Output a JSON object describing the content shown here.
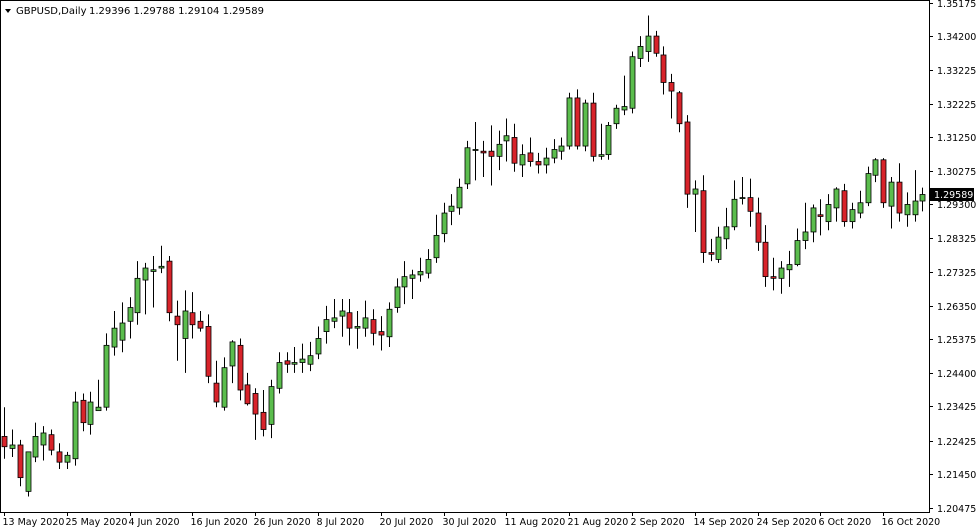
{
  "header": {
    "symbol": "GBPUSD,Daily",
    "ohlc": "1.29396 1.29788 1.29104 1.29589"
  },
  "current_price_label": "1.29589",
  "colors": {
    "bull": "#5bbd4d",
    "bear": "#d8232a",
    "wick": "#000000",
    "axis": "#000000",
    "price_tag_bg": "#000000",
    "price_tag_text": "#ffffff",
    "background": "#ffffff"
  },
  "chart_data": {
    "type": "candlestick",
    "title": "GBPUSD,Daily",
    "y_axis": {
      "position": "right",
      "ticks": [
        "1.35175",
        "1.34200",
        "1.33225",
        "1.32225",
        "1.31250",
        "1.30275",
        "1.29300",
        "1.28325",
        "1.27325",
        "1.26350",
        "1.25375",
        "1.24400",
        "1.23425",
        "1.22425",
        "1.21450",
        "1.20475"
      ],
      "ylim": [
        1.2035,
        1.3525
      ]
    },
    "x_axis": {
      "tick_labels": [
        "13 May 2020",
        "25 May 2020",
        "4 Jun 2020",
        "16 Jun 2020",
        "26 Jun 2020",
        "8 Jul 2020",
        "20 Jul 2020",
        "30 Jul 2020",
        "11 Aug 2020",
        "21 Aug 2020",
        "2 Sep 2020",
        "14 Sep 2020",
        "24 Sep 2020",
        "6 Oct 2020",
        "16 Oct 2020"
      ],
      "tick_indices": [
        0,
        8,
        16,
        24,
        32,
        40,
        48,
        56,
        64,
        72,
        80,
        88,
        96,
        104,
        112
      ]
    },
    "candles": [
      {
        "o": 1.2255,
        "h": 1.234,
        "l": 1.219,
        "c": 1.2225
      },
      {
        "o": 1.222,
        "h": 1.2275,
        "l": 1.2195,
        "c": 1.223
      },
      {
        "o": 1.223,
        "h": 1.2245,
        "l": 1.211,
        "c": 1.2135
      },
      {
        "o": 1.2095,
        "h": 1.2205,
        "l": 1.208,
        "c": 1.221
      },
      {
        "o": 1.2195,
        "h": 1.2295,
        "l": 1.218,
        "c": 1.2255
      },
      {
        "o": 1.223,
        "h": 1.2285,
        "l": 1.2185,
        "c": 1.2265
      },
      {
        "o": 1.226,
        "h": 1.2275,
        "l": 1.22,
        "c": 1.2215
      },
      {
        "o": 1.221,
        "h": 1.2235,
        "l": 1.216,
        "c": 1.218
      },
      {
        "o": 1.218,
        "h": 1.221,
        "l": 1.216,
        "c": 1.22
      },
      {
        "o": 1.219,
        "h": 1.2385,
        "l": 1.217,
        "c": 1.2355
      },
      {
        "o": 1.236,
        "h": 1.238,
        "l": 1.227,
        "c": 1.2295
      },
      {
        "o": 1.229,
        "h": 1.2385,
        "l": 1.226,
        "c": 1.2355
      },
      {
        "o": 1.233,
        "h": 1.242,
        "l": 1.233,
        "c": 1.234
      },
      {
        "o": 1.234,
        "h": 1.2555,
        "l": 1.233,
        "c": 1.252
      },
      {
        "o": 1.2515,
        "h": 1.262,
        "l": 1.249,
        "c": 1.257
      },
      {
        "o": 1.2535,
        "h": 1.2645,
        "l": 1.25,
        "c": 1.2585
      },
      {
        "o": 1.259,
        "h": 1.266,
        "l": 1.254,
        "c": 1.263
      },
      {
        "o": 1.2615,
        "h": 1.2765,
        "l": 1.258,
        "c": 1.2715
      },
      {
        "o": 1.271,
        "h": 1.276,
        "l": 1.261,
        "c": 1.2745
      },
      {
        "o": 1.2735,
        "h": 1.278,
        "l": 1.263,
        "c": 1.274
      },
      {
        "o": 1.2745,
        "h": 1.281,
        "l": 1.273,
        "c": 1.275
      },
      {
        "o": 1.2765,
        "h": 1.278,
        "l": 1.259,
        "c": 1.2615
      },
      {
        "o": 1.2605,
        "h": 1.265,
        "l": 1.2475,
        "c": 1.258
      },
      {
        "o": 1.254,
        "h": 1.268,
        "l": 1.244,
        "c": 1.262
      },
      {
        "o": 1.2615,
        "h": 1.2675,
        "l": 1.254,
        "c": 1.258
      },
      {
        "o": 1.259,
        "h": 1.262,
        "l": 1.256,
        "c": 1.257
      },
      {
        "o": 1.2575,
        "h": 1.261,
        "l": 1.241,
        "c": 1.243
      },
      {
        "o": 1.241,
        "h": 1.2475,
        "l": 1.234,
        "c": 1.2355
      },
      {
        "o": 1.234,
        "h": 1.2485,
        "l": 1.233,
        "c": 1.2455
      },
      {
        "o": 1.246,
        "h": 1.2535,
        "l": 1.241,
        "c": 1.253
      },
      {
        "o": 1.252,
        "h": 1.254,
        "l": 1.236,
        "c": 1.239
      },
      {
        "o": 1.2405,
        "h": 1.244,
        "l": 1.2345,
        "c": 1.235
      },
      {
        "o": 1.238,
        "h": 1.2395,
        "l": 1.2245,
        "c": 1.232
      },
      {
        "o": 1.2325,
        "h": 1.239,
        "l": 1.2255,
        "c": 1.2275
      },
      {
        "o": 1.229,
        "h": 1.242,
        "l": 1.225,
        "c": 1.24
      },
      {
        "o": 1.2395,
        "h": 1.25,
        "l": 1.238,
        "c": 1.247
      },
      {
        "o": 1.2475,
        "h": 1.25,
        "l": 1.244,
        "c": 1.2465
      },
      {
        "o": 1.2465,
        "h": 1.2515,
        "l": 1.244,
        "c": 1.247
      },
      {
        "o": 1.247,
        "h": 1.2525,
        "l": 1.244,
        "c": 1.248
      },
      {
        "o": 1.2465,
        "h": 1.253,
        "l": 1.2445,
        "c": 1.249
      },
      {
        "o": 1.2495,
        "h": 1.2575,
        "l": 1.248,
        "c": 1.254
      },
      {
        "o": 1.256,
        "h": 1.2635,
        "l": 1.2525,
        "c": 1.2595
      },
      {
        "o": 1.259,
        "h": 1.2655,
        "l": 1.257,
        "c": 1.26
      },
      {
        "o": 1.2605,
        "h": 1.2655,
        "l": 1.2545,
        "c": 1.262
      },
      {
        "o": 1.2615,
        "h": 1.2655,
        "l": 1.252,
        "c": 1.257
      },
      {
        "o": 1.257,
        "h": 1.262,
        "l": 1.251,
        "c": 1.2575
      },
      {
        "o": 1.257,
        "h": 1.265,
        "l": 1.2545,
        "c": 1.26
      },
      {
        "o": 1.2595,
        "h": 1.2625,
        "l": 1.252,
        "c": 1.2555
      },
      {
        "o": 1.256,
        "h": 1.2605,
        "l": 1.2505,
        "c": 1.255
      },
      {
        "o": 1.2545,
        "h": 1.2645,
        "l": 1.2515,
        "c": 1.2625
      },
      {
        "o": 1.263,
        "h": 1.2715,
        "l": 1.2615,
        "c": 1.269
      },
      {
        "o": 1.269,
        "h": 1.2765,
        "l": 1.264,
        "c": 1.272
      },
      {
        "o": 1.2715,
        "h": 1.274,
        "l": 1.2655,
        "c": 1.2725
      },
      {
        "o": 1.2725,
        "h": 1.2775,
        "l": 1.2705,
        "c": 1.2735
      },
      {
        "o": 1.273,
        "h": 1.28,
        "l": 1.2715,
        "c": 1.277
      },
      {
        "o": 1.2775,
        "h": 1.29,
        "l": 1.276,
        "c": 1.284
      },
      {
        "o": 1.2845,
        "h": 1.2935,
        "l": 1.282,
        "c": 1.2905
      },
      {
        "o": 1.291,
        "h": 1.296,
        "l": 1.287,
        "c": 1.2925
      },
      {
        "o": 1.292,
        "h": 1.3005,
        "l": 1.29,
        "c": 1.298
      },
      {
        "o": 1.299,
        "h": 1.3115,
        "l": 1.2975,
        "c": 1.3095
      },
      {
        "o": 1.309,
        "h": 1.317,
        "l": 1.3,
        "c": 1.309
      },
      {
        "o": 1.3085,
        "h": 1.3115,
        "l": 1.301,
        "c": 1.308
      },
      {
        "o": 1.3085,
        "h": 1.316,
        "l": 1.2985,
        "c": 1.307
      },
      {
        "o": 1.307,
        "h": 1.3145,
        "l": 1.303,
        "c": 1.3105
      },
      {
        "o": 1.3115,
        "h": 1.318,
        "l": 1.3055,
        "c": 1.313
      },
      {
        "o": 1.3125,
        "h": 1.3165,
        "l": 1.3025,
        "c": 1.305
      },
      {
        "o": 1.3045,
        "h": 1.3105,
        "l": 1.301,
        "c": 1.3075
      },
      {
        "o": 1.308,
        "h": 1.3125,
        "l": 1.304,
        "c": 1.3055
      },
      {
        "o": 1.3055,
        "h": 1.308,
        "l": 1.302,
        "c": 1.3045
      },
      {
        "o": 1.3045,
        "h": 1.3095,
        "l": 1.302,
        "c": 1.3065
      },
      {
        "o": 1.3065,
        "h": 1.312,
        "l": 1.305,
        "c": 1.309
      },
      {
        "o": 1.3085,
        "h": 1.3125,
        "l": 1.306,
        "c": 1.31
      },
      {
        "o": 1.31,
        "h": 1.3255,
        "l": 1.309,
        "c": 1.324
      },
      {
        "o": 1.324,
        "h": 1.3265,
        "l": 1.309,
        "c": 1.31
      },
      {
        "o": 1.31,
        "h": 1.3235,
        "l": 1.3085,
        "c": 1.3225
      },
      {
        "o": 1.3225,
        "h": 1.3255,
        "l": 1.3055,
        "c": 1.307
      },
      {
        "o": 1.307,
        "h": 1.3165,
        "l": 1.306,
        "c": 1.3075
      },
      {
        "o": 1.3075,
        "h": 1.317,
        "l": 1.306,
        "c": 1.316
      },
      {
        "o": 1.3165,
        "h": 1.322,
        "l": 1.315,
        "c": 1.321
      },
      {
        "o": 1.3205,
        "h": 1.3305,
        "l": 1.319,
        "c": 1.3215
      },
      {
        "o": 1.321,
        "h": 1.3375,
        "l": 1.3195,
        "c": 1.336
      },
      {
        "o": 1.3355,
        "h": 1.342,
        "l": 1.333,
        "c": 1.339
      },
      {
        "o": 1.3375,
        "h": 1.348,
        "l": 1.3345,
        "c": 1.342
      },
      {
        "o": 1.342,
        "h": 1.3435,
        "l": 1.336,
        "c": 1.337
      },
      {
        "o": 1.3365,
        "h": 1.339,
        "l": 1.325,
        "c": 1.3285
      },
      {
        "o": 1.3285,
        "h": 1.331,
        "l": 1.318,
        "c": 1.326
      },
      {
        "o": 1.3255,
        "h": 1.326,
        "l": 1.314,
        "c": 1.3165
      },
      {
        "o": 1.317,
        "h": 1.319,
        "l": 1.292,
        "c": 1.296
      },
      {
        "o": 1.296,
        "h": 1.3,
        "l": 1.285,
        "c": 1.2975
      },
      {
        "o": 1.297,
        "h": 1.3015,
        "l": 1.276,
        "c": 1.279
      },
      {
        "o": 1.279,
        "h": 1.283,
        "l": 1.2765,
        "c": 1.2785
      },
      {
        "o": 1.277,
        "h": 1.2865,
        "l": 1.276,
        "c": 1.2835
      },
      {
        "o": 1.283,
        "h": 1.292,
        "l": 1.28,
        "c": 1.2865
      },
      {
        "o": 1.2865,
        "h": 1.3,
        "l": 1.2855,
        "c": 1.2945
      },
      {
        "o": 1.295,
        "h": 1.301,
        "l": 1.293,
        "c": 1.295
      },
      {
        "o": 1.295,
        "h": 1.3005,
        "l": 1.2865,
        "c": 1.291
      },
      {
        "o": 1.2905,
        "h": 1.295,
        "l": 1.2795,
        "c": 1.282
      },
      {
        "o": 1.282,
        "h": 1.287,
        "l": 1.269,
        "c": 1.272
      },
      {
        "o": 1.272,
        "h": 1.2775,
        "l": 1.268,
        "c": 1.2715
      },
      {
        "o": 1.2715,
        "h": 1.2765,
        "l": 1.267,
        "c": 1.2745
      },
      {
        "o": 1.274,
        "h": 1.2795,
        "l": 1.269,
        "c": 1.2755
      },
      {
        "o": 1.2755,
        "h": 1.286,
        "l": 1.275,
        "c": 1.2825
      },
      {
        "o": 1.2825,
        "h": 1.2935,
        "l": 1.28,
        "c": 1.285
      },
      {
        "o": 1.285,
        "h": 1.293,
        "l": 1.282,
        "c": 1.292
      },
      {
        "o": 1.29,
        "h": 1.2945,
        "l": 1.284,
        "c": 1.2895
      },
      {
        "o": 1.288,
        "h": 1.296,
        "l": 1.2855,
        "c": 1.293
      },
      {
        "o": 1.292,
        "h": 1.298,
        "l": 1.288,
        "c": 1.2975
      },
      {
        "o": 1.297,
        "h": 1.299,
        "l": 1.2865,
        "c": 1.288
      },
      {
        "o": 1.288,
        "h": 1.2935,
        "l": 1.286,
        "c": 1.2915
      },
      {
        "o": 1.2905,
        "h": 1.297,
        "l": 1.289,
        "c": 1.2935
      },
      {
        "o": 1.2935,
        "h": 1.304,
        "l": 1.2925,
        "c": 1.302
      },
      {
        "o": 1.3015,
        "h": 1.3065,
        "l": 1.2995,
        "c": 1.306
      },
      {
        "o": 1.306,
        "h": 1.3065,
        "l": 1.292,
        "c": 1.2935
      },
      {
        "o": 1.2925,
        "h": 1.301,
        "l": 1.286,
        "c": 1.2995
      },
      {
        "o": 1.2995,
        "h": 1.305,
        "l": 1.288,
        "c": 1.2905
      },
      {
        "o": 1.29,
        "h": 1.2965,
        "l": 1.2865,
        "c": 1.293
      },
      {
        "o": 1.29,
        "h": 1.303,
        "l": 1.288,
        "c": 1.294
      },
      {
        "o": 1.294,
        "h": 1.2979,
        "l": 1.291,
        "c": 1.2959
      }
    ]
  }
}
